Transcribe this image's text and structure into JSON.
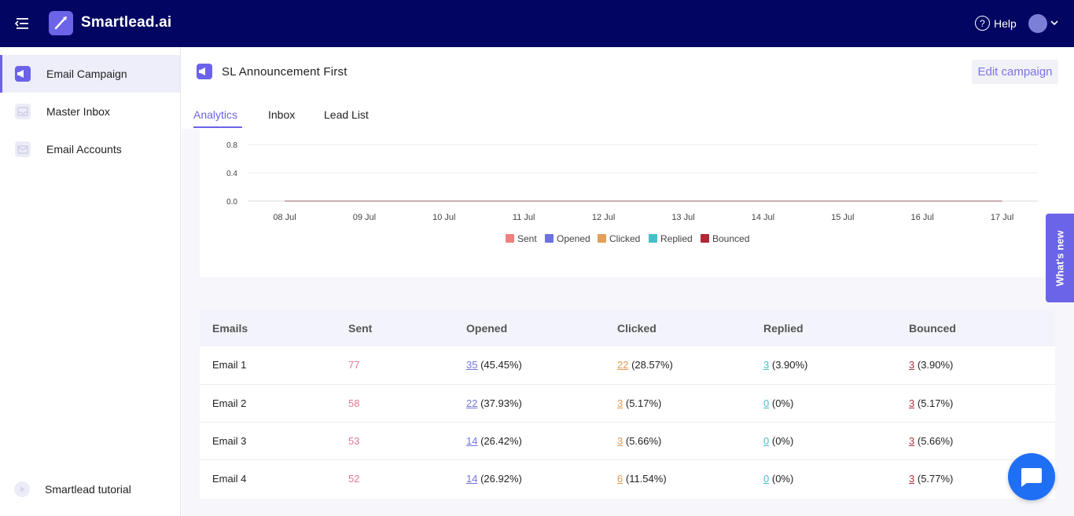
{
  "app": {
    "name": "Smartlead.ai"
  },
  "topbar": {
    "help_label": "Help"
  },
  "sidebar": {
    "items": [
      {
        "label": "Email Campaign",
        "active": true
      },
      {
        "label": "Master Inbox",
        "active": false
      },
      {
        "label": "Email Accounts",
        "active": false
      }
    ],
    "tutorial_label": "Smartlead tutorial"
  },
  "campaign": {
    "title": "SL Announcement First",
    "edit_label": "Edit campaign"
  },
  "tabs": [
    {
      "label": "Analytics",
      "active": true
    },
    {
      "label": "Inbox",
      "active": false
    },
    {
      "label": "Lead List",
      "active": false
    }
  ],
  "chart_data": {
    "type": "line",
    "x": [
      "08 Jul",
      "09 Jul",
      "10 Jul",
      "11 Jul",
      "12 Jul",
      "13 Jul",
      "14 Jul",
      "15 Jul",
      "16 Jul",
      "17 Jul"
    ],
    "y_ticks": [
      "0.8",
      "0.4",
      "0.0"
    ],
    "ylim": [
      0,
      0.8
    ],
    "series": [
      {
        "name": "Sent",
        "color": "#f08080",
        "values": [
          0,
          0,
          0,
          0,
          0,
          0,
          0,
          0,
          0,
          0
        ]
      },
      {
        "name": "Opened",
        "color": "#6c72e0",
        "values": [
          0,
          0,
          0,
          0,
          0,
          0,
          0,
          0,
          0,
          0
        ]
      },
      {
        "name": "Clicked",
        "color": "#e3a05a",
        "values": [
          0,
          0,
          0,
          0,
          0,
          0,
          0,
          0,
          0,
          0
        ]
      },
      {
        "name": "Replied",
        "color": "#46c0c8",
        "values": [
          0,
          0,
          0,
          0,
          0,
          0,
          0,
          0,
          0,
          0
        ]
      },
      {
        "name": "Bounced",
        "color": "#b02a37",
        "values": [
          0,
          0,
          0,
          0,
          0,
          0,
          0,
          0,
          0,
          0
        ]
      }
    ],
    "legend": "bottom",
    "grid": true
  },
  "table": {
    "headers": [
      "Emails",
      "Sent",
      "Opened",
      "Clicked",
      "Replied",
      "Bounced"
    ],
    "rows": [
      {
        "email": "Email 1",
        "sent": "77",
        "opened_n": "35",
        "opened_p": "(45.45%)",
        "clicked_n": "22",
        "clicked_p": "(28.57%)",
        "replied_n": "3",
        "replied_p": "(3.90%)",
        "bounced_n": "3",
        "bounced_p": "(3.90%)"
      },
      {
        "email": "Email 2",
        "sent": "58",
        "opened_n": "22",
        "opened_p": "(37.93%)",
        "clicked_n": "3",
        "clicked_p": "(5.17%)",
        "replied_n": "0",
        "replied_p": "(0%)",
        "bounced_n": "3",
        "bounced_p": "(5.17%)"
      },
      {
        "email": "Email 3",
        "sent": "53",
        "opened_n": "14",
        "opened_p": "(26.42%)",
        "clicked_n": "3",
        "clicked_p": "(5.66%)",
        "replied_n": "0",
        "replied_p": "(0%)",
        "bounced_n": "3",
        "bounced_p": "(5.66%)"
      },
      {
        "email": "Email 4",
        "sent": "52",
        "opened_n": "14",
        "opened_p": "(26.92%)",
        "clicked_n": "6",
        "clicked_p": "(11.54%)",
        "replied_n": "0",
        "replied_p": "(0%)",
        "bounced_n": "3",
        "bounced_p": "(5.77%)"
      }
    ]
  },
  "whats_new_label": "What's new"
}
